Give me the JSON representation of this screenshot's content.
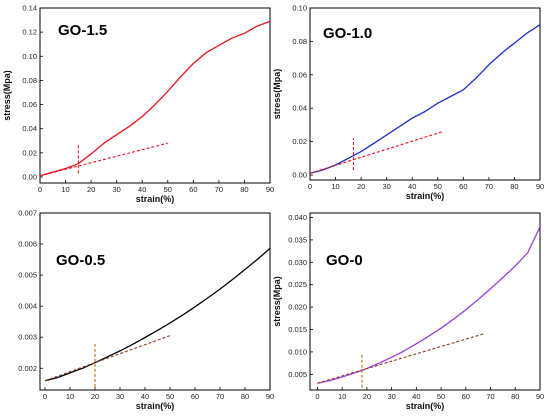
{
  "chart_data": [
    {
      "type": "line",
      "title": "GO-1.5",
      "xlabel": "strain(%)",
      "ylabel": "stress(Mpa)",
      "xlim": [
        0,
        90
      ],
      "ylim": [
        -0.005,
        0.14
      ],
      "xticks": [
        0,
        10,
        20,
        30,
        40,
        50,
        60,
        70,
        80,
        90
      ],
      "yticks": [
        0.0,
        0.02,
        0.04,
        0.06,
        0.08,
        0.1,
        0.12,
        0.14
      ],
      "ytick_labels": [
        "0.00",
        "0.02",
        "0.04",
        "0.06",
        "0.08",
        "0.10",
        "0.12",
        "0.14"
      ],
      "series": [
        {
          "color": "#e8141b",
          "x": [
            0,
            5,
            10,
            15,
            20,
            25,
            30,
            35,
            40,
            45,
            50,
            55,
            60,
            65,
            70,
            75,
            80,
            85,
            90
          ],
          "y": [
            0.001,
            0.004,
            0.007,
            0.011,
            0.019,
            0.028,
            0.035,
            0.042,
            0.05,
            0.06,
            0.071,
            0.083,
            0.094,
            0.103,
            0.109,
            0.115,
            0.119,
            0.125,
            0.129
          ]
        }
      ],
      "tangent_line": {
        "color": "#e8141b",
        "x": [
          0,
          50
        ],
        "y": [
          0.001,
          0.028
        ]
      },
      "marker_line": {
        "color": "#d8201a",
        "x": 15,
        "y": [
          0.003,
          0.027
        ]
      }
    },
    {
      "type": "line",
      "title": "GO-1.0",
      "xlabel": "strain(%)",
      "ylabel": "stress(Mpa)",
      "xlim": [
        0,
        90
      ],
      "ylim": [
        -0.003,
        0.1
      ],
      "xticks": [
        0,
        10,
        20,
        30,
        40,
        50,
        60,
        70,
        80,
        90
      ],
      "yticks": [
        0.0,
        0.02,
        0.04,
        0.06,
        0.08,
        0.1
      ],
      "ytick_labels": [
        "0.00",
        "0.02",
        "0.04",
        "0.06",
        "0.08",
        "0.10"
      ],
      "series": [
        {
          "color": "#1a2ccc",
          "x": [
            0,
            5,
            10,
            15,
            20,
            25,
            30,
            35,
            40,
            45,
            50,
            55,
            60,
            65,
            70,
            75,
            80,
            85,
            90
          ],
          "y": [
            0.001,
            0.003,
            0.006,
            0.01,
            0.014,
            0.019,
            0.024,
            0.029,
            0.034,
            0.038,
            0.043,
            0.047,
            0.051,
            0.058,
            0.066,
            0.073,
            0.079,
            0.085,
            0.09
          ]
        }
      ],
      "tangent_line": {
        "color": "#e8141b",
        "x": [
          0,
          52
        ],
        "y": [
          0.001,
          0.026
        ]
      },
      "marker_line": {
        "color": "#d8201a",
        "x": 17,
        "y": [
          0.003,
          0.022
        ]
      }
    },
    {
      "type": "line",
      "title": "GO-0.5",
      "xlabel": "strain(%)",
      "ylabel": "",
      "xlim": [
        -2,
        90
      ],
      "ylim": [
        0.0013,
        0.007
      ],
      "xticks": [
        0,
        10,
        20,
        30,
        40,
        50,
        60,
        70,
        80,
        90
      ],
      "yticks": [
        0.002,
        0.003,
        0.004,
        0.005,
        0.006,
        0.007
      ],
      "ytick_labels": [
        "0.002",
        "0.003",
        "0.004",
        "0.005",
        "0.006",
        "0.007"
      ],
      "series": [
        {
          "color": "#000000",
          "x": [
            0,
            5,
            10,
            15,
            20,
            25,
            30,
            35,
            40,
            45,
            50,
            55,
            60,
            65,
            70,
            75,
            80,
            85,
            90
          ],
          "y": [
            0.0016,
            0.0017,
            0.00185,
            0.002,
            0.00218,
            0.00237,
            0.00256,
            0.00277,
            0.00299,
            0.00322,
            0.00346,
            0.00371,
            0.00398,
            0.00426,
            0.00455,
            0.00486,
            0.00518,
            0.00551,
            0.00586
          ]
        }
      ],
      "tangent_line": {
        "color": "#8b3a1a",
        "x": [
          0,
          50
        ],
        "y": [
          0.0016,
          0.00305
        ]
      },
      "marker_line": {
        "color": "#c46a10",
        "x": 20,
        "y": [
          0.0014,
          0.00285
        ]
      }
    },
    {
      "type": "line",
      "title": "GO-0",
      "xlabel": "strain(%)",
      "ylabel": "stress(Mpa)",
      "xlim": [
        -3,
        90
      ],
      "ylim": [
        0.0015,
        0.041
      ],
      "xticks": [
        0,
        10,
        20,
        30,
        40,
        50,
        60,
        70,
        80,
        90
      ],
      "yticks": [
        0.005,
        0.01,
        0.015,
        0.02,
        0.025,
        0.03,
        0.035,
        0.04
      ],
      "ytick_labels": [
        "0.005",
        "0.010",
        "0.015",
        "0.020",
        "0.025",
        "0.030",
        "0.035",
        "0.040"
      ],
      "series": [
        {
          "color": "#9b3fe0",
          "x": [
            0,
            5,
            10,
            15,
            20,
            25,
            30,
            35,
            40,
            45,
            50,
            55,
            60,
            65,
            70,
            75,
            80,
            85,
            90
          ],
          "y": [
            0.003,
            0.0036,
            0.0044,
            0.0053,
            0.0063,
            0.0075,
            0.0088,
            0.0102,
            0.0118,
            0.0135,
            0.0153,
            0.0173,
            0.0194,
            0.0217,
            0.0241,
            0.0266,
            0.0292,
            0.0321,
            0.0379
          ]
        }
      ],
      "tangent_line": {
        "color": "#8b3a1a",
        "x": [
          0,
          67
        ],
        "y": [
          0.003,
          0.014
        ]
      },
      "marker_line": {
        "color": "#c46a10",
        "x": 18,
        "y": [
          0.002,
          0.0098
        ]
      }
    }
  ]
}
